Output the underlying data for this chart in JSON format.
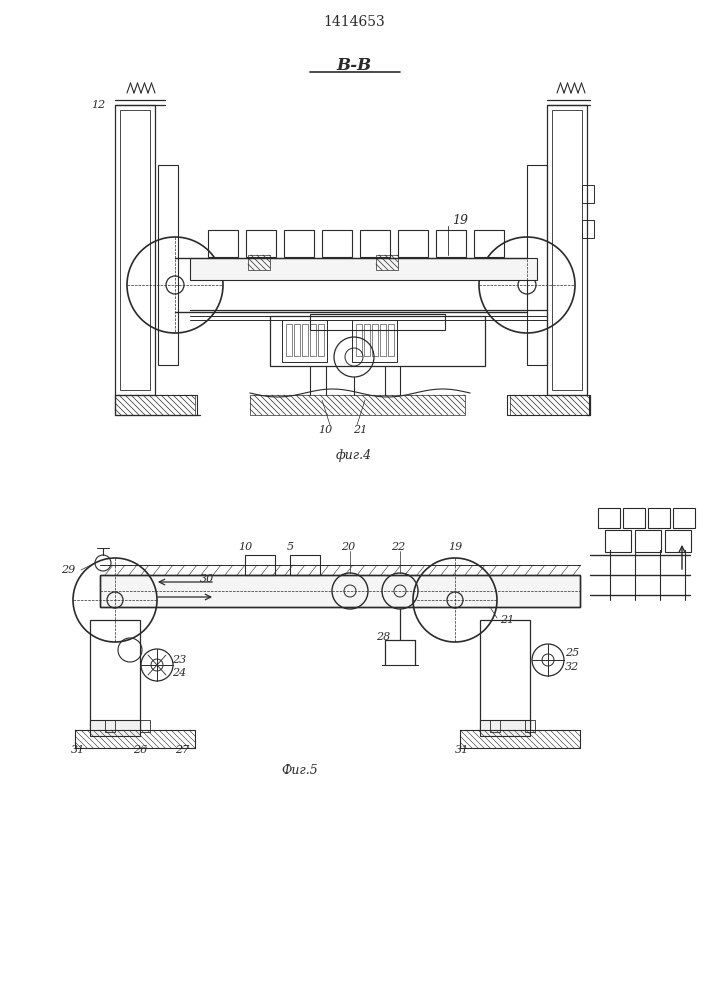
{
  "title": "1414653",
  "bg_color": "#ffffff",
  "line_color": "#2a2a2a",
  "fig4_label": "фиг.4",
  "fig5_label": "Фиг.5",
  "section_label": "B-B"
}
